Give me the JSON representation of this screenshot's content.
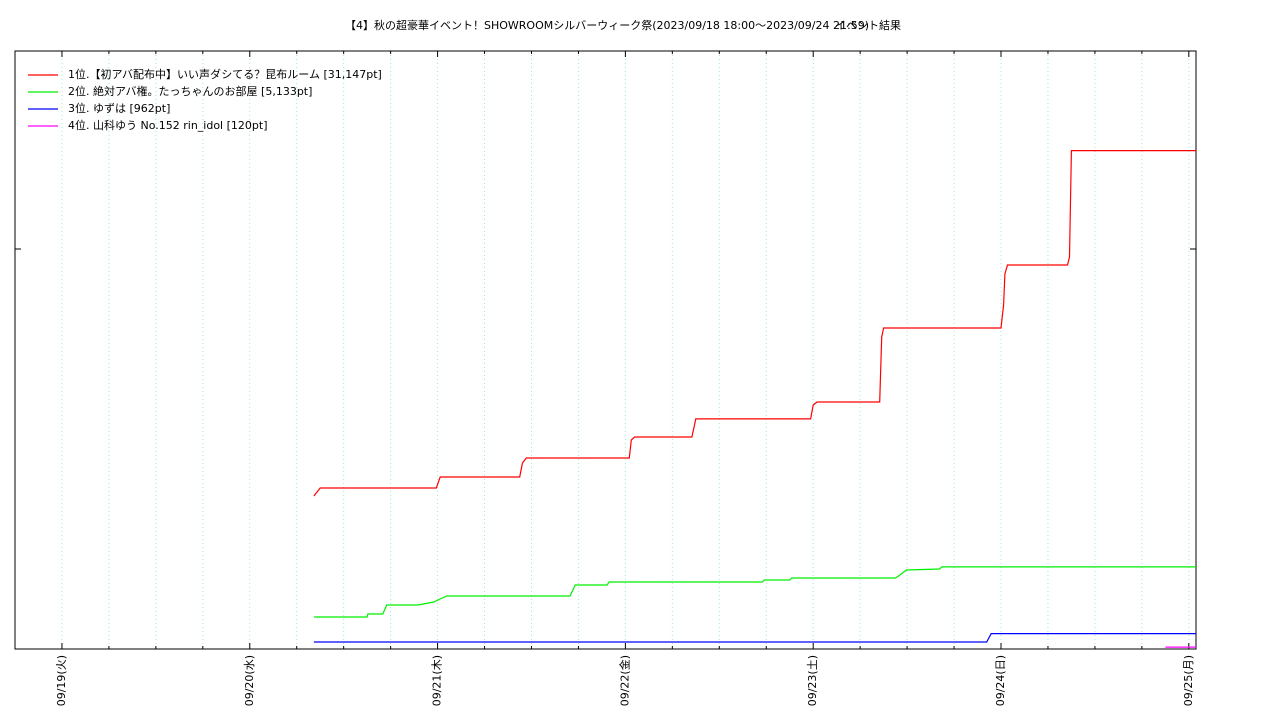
{
  "chart_data": {
    "type": "line",
    "title": "【4】秋の超豪華イベント！SHOWROOMシルバーウィーク祭(2023/09/18 18:00～2023/09/24 21:59)",
    "subtitle": "イベント結果",
    "xlim": [
      "09/18 18:00",
      "09/25 00:55"
    ],
    "xticks": [
      {
        "value": "09/19 00:00",
        "label": "09/19(火)"
      },
      {
        "value": "09/20 00:00",
        "label": "09/20(水)"
      },
      {
        "value": "09/21 00:00",
        "label": "09/21(木)"
      },
      {
        "value": "09/22 00:00",
        "label": "09/22(金)"
      },
      {
        "value": "09/23 00:00",
        "label": "09/23(土)"
      },
      {
        "value": "09/24 00:00",
        "label": "09/24(日)"
      },
      {
        "value": "09/25 00:00",
        "label": "09/25(月)"
      }
    ],
    "minor_ticks": 4,
    "ylim": [
      0,
      37375
    ],
    "yticks": [
      25000
    ],
    "grid": true,
    "legend": "top-left",
    "series": [
      {
        "name": "1位.【初アバ配布中】いい声ダシてる？昆布ルーム [31,147pt]",
        "color": "#ff0000",
        "x": [
          "09/20 08:12",
          "09/20 09:00",
          "09/20 23:50",
          "09/21 00:20",
          "09/21 10:30",
          "09/21 10:50",
          "09/21 11:20",
          "09/22 00:30",
          "09/22 00:45",
          "09/22 01:10",
          "09/22 08:30",
          "09/22 09:00",
          "09/22 23:40",
          "09/23 00:00",
          "09/23 00:30",
          "09/23 08:30",
          "09/23 08:45",
          "09/23 09:00",
          "09/24 00:00",
          "09/24 00:20",
          "09/24 00:30",
          "09/24 00:50",
          "09/24 08:30",
          "09/24 08:45",
          "09/24 09:00",
          "09/25 00:55"
        ],
        "values": [
          9560,
          10060,
          10060,
          10750,
          10750,
          11620,
          11940,
          11940,
          13060,
          13250,
          13250,
          14380,
          14380,
          15250,
          15440,
          15440,
          19500,
          20060,
          20060,
          21500,
          23440,
          24000,
          24000,
          24500,
          31147,
          31147
        ]
      },
      {
        "name": "2位. 絶対アバ権。たっちゃんのお部屋 [5,133pt]",
        "color": "#00ee00",
        "x": [
          "09/20 08:12",
          "09/20 15:00",
          "09/20 15:06",
          "09/20 17:00",
          "09/20 17:30",
          "09/20 21:30",
          "09/20 23:30",
          "09/21 00:20",
          "09/21 01:10",
          "09/21 16:55",
          "09/21 17:35",
          "09/21 21:40",
          "09/21 21:55",
          "09/22 17:30",
          "09/22 17:45",
          "09/22 21:00",
          "09/22 21:15",
          "09/23 10:30",
          "09/23 11:05",
          "09/23 11:55",
          "09/23 16:10",
          "09/23 16:25",
          "09/25 00:55"
        ],
        "values": [
          2000,
          2000,
          2190,
          2190,
          2750,
          2750,
          2940,
          3125,
          3310,
          3310,
          4000,
          4000,
          4190,
          4190,
          4310,
          4310,
          4440,
          4440,
          4625,
          4940,
          5000,
          5133,
          5133
        ]
      },
      {
        "name": "3位. ゆずは [962pt]",
        "color": "#0000ff",
        "x": [
          "09/20 08:12",
          "09/23 22:10",
          "09/23 22:45",
          "09/25 00:55"
        ],
        "values": [
          440,
          440,
          962,
          962
        ]
      },
      {
        "name": "4位. 山科ゆう No.152 rin_idol [120pt]",
        "color": "#ff00ff",
        "x": [
          "09/24 21:00",
          "09/25 00:55"
        ],
        "values": [
          120,
          120
        ]
      }
    ]
  }
}
